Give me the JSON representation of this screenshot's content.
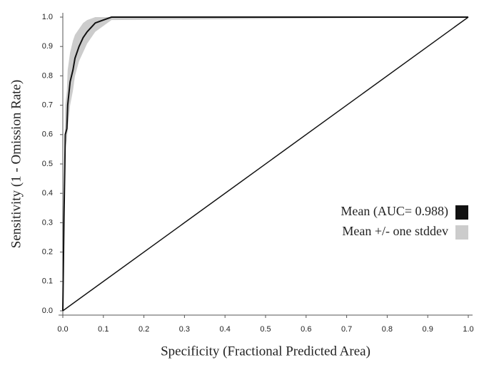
{
  "chart_data": {
    "type": "line",
    "xlabel": "Specificity (Fractional Predicted Area)",
    "ylabel": "Sensitivity (1 - Omission Rate)",
    "x": [
      0,
      0.003,
      0.005,
      0.006,
      0.01,
      0.012,
      0.018,
      0.025,
      0.03,
      0.04,
      0.05,
      0.06,
      0.08,
      0.1,
      0.12,
      1
    ],
    "series": [
      {
        "name": "Mean (AUC= 0.988)",
        "color": "#111111",
        "values": [
          0,
          0.33,
          0.5,
          0.6,
          0.62,
          0.7,
          0.78,
          0.82,
          0.86,
          0.9,
          0.93,
          0.95,
          0.98,
          0.99,
          1.0,
          1.0
        ]
      },
      {
        "name": "Mean +/- one stddev",
        "color": "#cccccc",
        "lower": [
          0,
          0.3,
          0.45,
          0.55,
          0.58,
          0.62,
          0.7,
          0.75,
          0.8,
          0.85,
          0.88,
          0.91,
          0.95,
          0.97,
          0.99,
          1.0
        ],
        "upper": [
          0,
          0.4,
          0.6,
          0.7,
          0.75,
          0.82,
          0.88,
          0.92,
          0.94,
          0.96,
          0.98,
          0.99,
          1.0,
          1.0,
          1.0,
          1.0
        ]
      }
    ],
    "reference": {
      "x": [
        0,
        1
      ],
      "values": [
        0,
        1
      ],
      "color": "#111111"
    },
    "xlim": [
      0,
      1
    ],
    "ylim": [
      0,
      1
    ],
    "xticks": [
      {
        "value": 0,
        "label": "0.0"
      },
      0.1,
      0.2,
      0.3,
      0.4,
      0.5,
      0.6,
      0.7,
      0.8,
      0.9,
      {
        "value": 1,
        "label": "1.0"
      }
    ],
    "yticks": [
      {
        "value": 0,
        "label": "0.0"
      },
      0.1,
      0.2,
      0.3,
      0.4,
      0.5,
      0.6,
      0.7,
      0.8,
      0.9,
      {
        "value": 1,
        "label": "1.0"
      }
    ]
  }
}
